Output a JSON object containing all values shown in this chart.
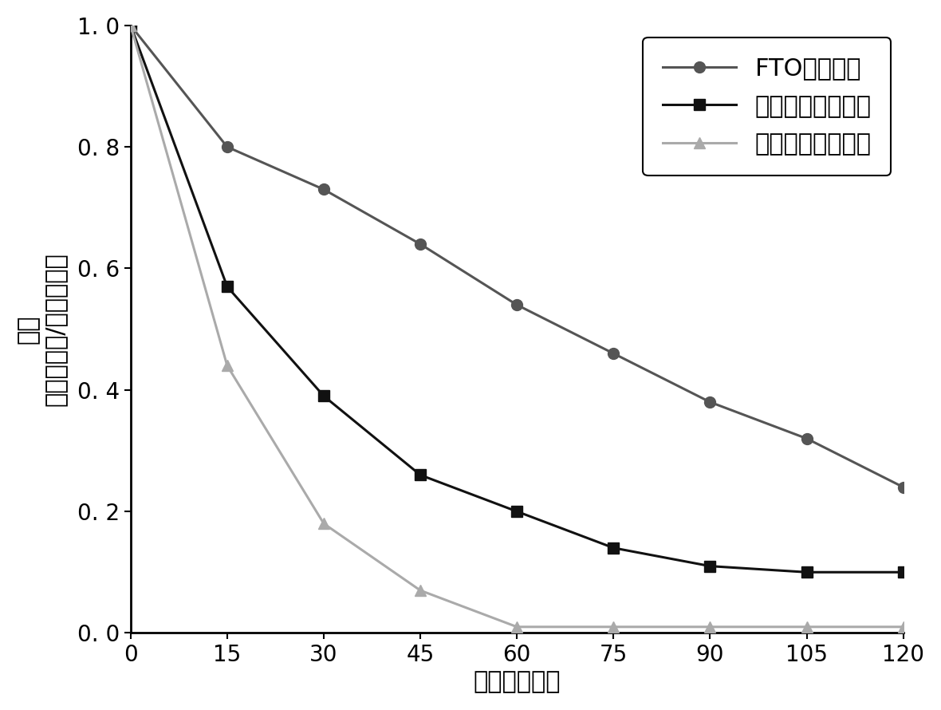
{
  "x": [
    0,
    15,
    30,
    45,
    60,
    75,
    90,
    105,
    120
  ],
  "series": [
    {
      "label": "FTO基底电极",
      "y": [
        1.0,
        0.8,
        0.73,
        0.64,
        0.54,
        0.46,
        0.38,
        0.32,
        0.24
      ],
      "color": "#555555",
      "marker": "o",
      "markersize": 10,
      "linewidth": 2.2
    },
    {
      "label": "不锈钢片基底电极",
      "y": [
        1.0,
        0.57,
        0.39,
        0.26,
        0.2,
        0.14,
        0.11,
        0.1,
        0.1
      ],
      "color": "#111111",
      "marker": "s",
      "markersize": 10,
      "linewidth": 2.2
    },
    {
      "label": "不锈钢网基底电极",
      "y": [
        1.0,
        0.44,
        0.18,
        0.07,
        0.01,
        0.01,
        0.01,
        0.01,
        0.01
      ],
      "color": "#aaaaaa",
      "marker": "^",
      "markersize": 10,
      "linewidth": 2.2
    }
  ],
  "xlabel": "时间（分钟）",
  "ylabel_line1": "苯酚",
  "ylabel_line2": "（测量浓度/初始浓度）",
  "xlim": [
    0,
    120
  ],
  "ylim": [
    0,
    1.0
  ],
  "xticks": [
    0,
    15,
    30,
    45,
    60,
    75,
    90,
    105,
    120
  ],
  "yticks": [
    0.0,
    0.2,
    0.4,
    0.6,
    0.8,
    1.0
  ],
  "ytick_labels": [
    "0. 0",
    "0. 2",
    "0. 4",
    "0. 6",
    "0. 8",
    "1. 0"
  ],
  "background_color": "#ffffff",
  "legend_loc": "upper right",
  "font_size": 22,
  "tick_fontsize": 20,
  "label_fontsize": 22
}
